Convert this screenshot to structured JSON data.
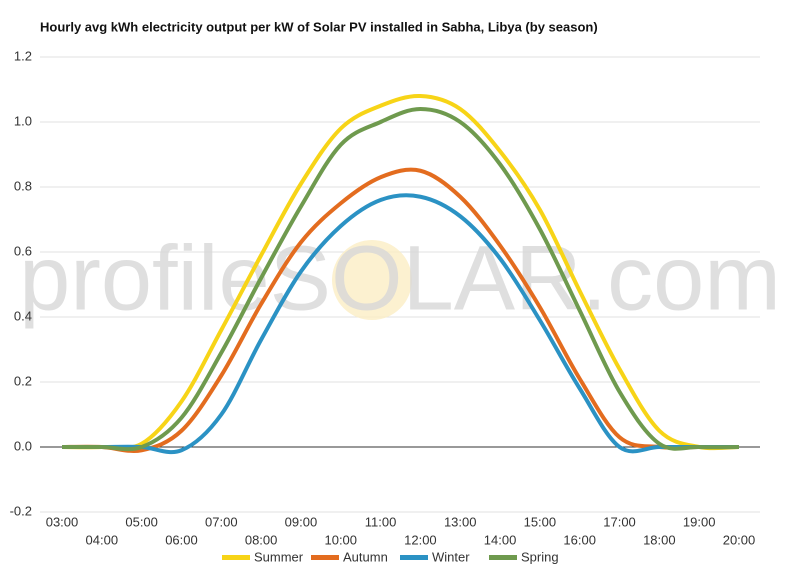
{
  "chart_data": {
    "type": "line",
    "title": "Hourly avg kWh electricity output per kW of Solar PV installed in Sabha, Libya (by season)",
    "watermark": "profileSOLAR.com",
    "categories": [
      "03:00",
      "04:00",
      "05:00",
      "06:00",
      "07:00",
      "08:00",
      "09:00",
      "10:00",
      "11:00",
      "12:00",
      "13:00",
      "14:00",
      "15:00",
      "16:00",
      "17:00",
      "18:00",
      "19:00",
      "20:00"
    ],
    "series": [
      {
        "name": "Summer",
        "color": "#f7d417",
        "values": [
          0,
          0,
          0.01,
          0.14,
          0.36,
          0.59,
          0.81,
          0.98,
          1.05,
          1.08,
          1.04,
          0.91,
          0.73,
          0.48,
          0.24,
          0.05,
          0,
          0
        ]
      },
      {
        "name": "Autumn",
        "color": "#e36c1f",
        "values": [
          0,
          0,
          -0.01,
          0.05,
          0.22,
          0.44,
          0.63,
          0.75,
          0.83,
          0.85,
          0.77,
          0.62,
          0.43,
          0.21,
          0.03,
          0,
          0,
          0
        ]
      },
      {
        "name": "Winter",
        "color": "#2b92c4",
        "values": [
          0,
          0,
          0,
          -0.01,
          0.1,
          0.33,
          0.54,
          0.68,
          0.76,
          0.77,
          0.71,
          0.58,
          0.39,
          0.18,
          0,
          0,
          0,
          0
        ]
      },
      {
        "name": "Spring",
        "color": "#6f9a4e",
        "values": [
          0,
          0,
          0,
          0.09,
          0.29,
          0.52,
          0.74,
          0.93,
          1.0,
          1.04,
          1.0,
          0.87,
          0.67,
          0.42,
          0.17,
          0.01,
          0,
          0
        ]
      }
    ],
    "ylim": [
      -0.2,
      1.2
    ],
    "yticks": [
      -0.2,
      {
        "value": 0,
        "label": "0.0"
      },
      0.2,
      0.4,
      0.6,
      0.8,
      {
        "value": 1,
        "label": "1.0"
      },
      1.2
    ],
    "grid": true
  }
}
